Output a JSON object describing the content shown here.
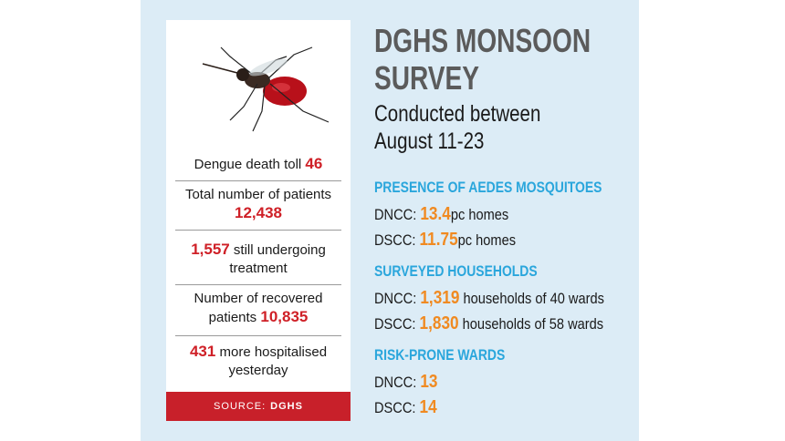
{
  "card": {
    "stats": [
      {
        "pre": "Dengue death toll ",
        "num": "46",
        "post": ""
      },
      {
        "pre": "Total number of patients ",
        "num": "12,438",
        "post": ""
      },
      {
        "pre": "",
        "num": "1,557",
        "post": " still undergoing treatment"
      },
      {
        "pre": "Number of recovered patients ",
        "num": "10,835",
        "post": ""
      },
      {
        "pre": "",
        "num": "431",
        "post": " more hospitalised yesterday"
      }
    ],
    "source_label": "SOURCE:",
    "source_name": "DGHS"
  },
  "title": {
    "line1": "DGHS MONSOON",
    "line2": "SURVEY"
  },
  "subtitle": {
    "line1": "Conducted between",
    "line2": "August 11-23"
  },
  "sections": [
    {
      "heading": "PRESENCE OF AEDES MOSQUITOES",
      "rows": [
        {
          "label": "DNCC: ",
          "value": "13.4",
          "suffix": "pc homes"
        },
        {
          "label": "DSCC: ",
          "value": "11.75",
          "suffix": "pc homes"
        }
      ]
    },
    {
      "heading": "SURVEYED HOUSEHOLDS",
      "rows": [
        {
          "label": "DNCC: ",
          "value": "1,319",
          "suffix": " households of 40 wards"
        },
        {
          "label": "DSCC: ",
          "value": "1,830",
          "suffix": " households of 58 wards"
        }
      ]
    },
    {
      "heading": "RISK-PRONE WARDS",
      "rows": [
        {
          "label": "DNCC: ",
          "value": "13",
          "suffix": ""
        },
        {
          "label": "DSCC: ",
          "value": "14",
          "suffix": ""
        }
      ]
    }
  ],
  "colors": {
    "accent_red": "#cf2027",
    "accent_orange": "#f08a21",
    "heading_blue": "#2aa6dc",
    "panel": "#dcecf6"
  }
}
